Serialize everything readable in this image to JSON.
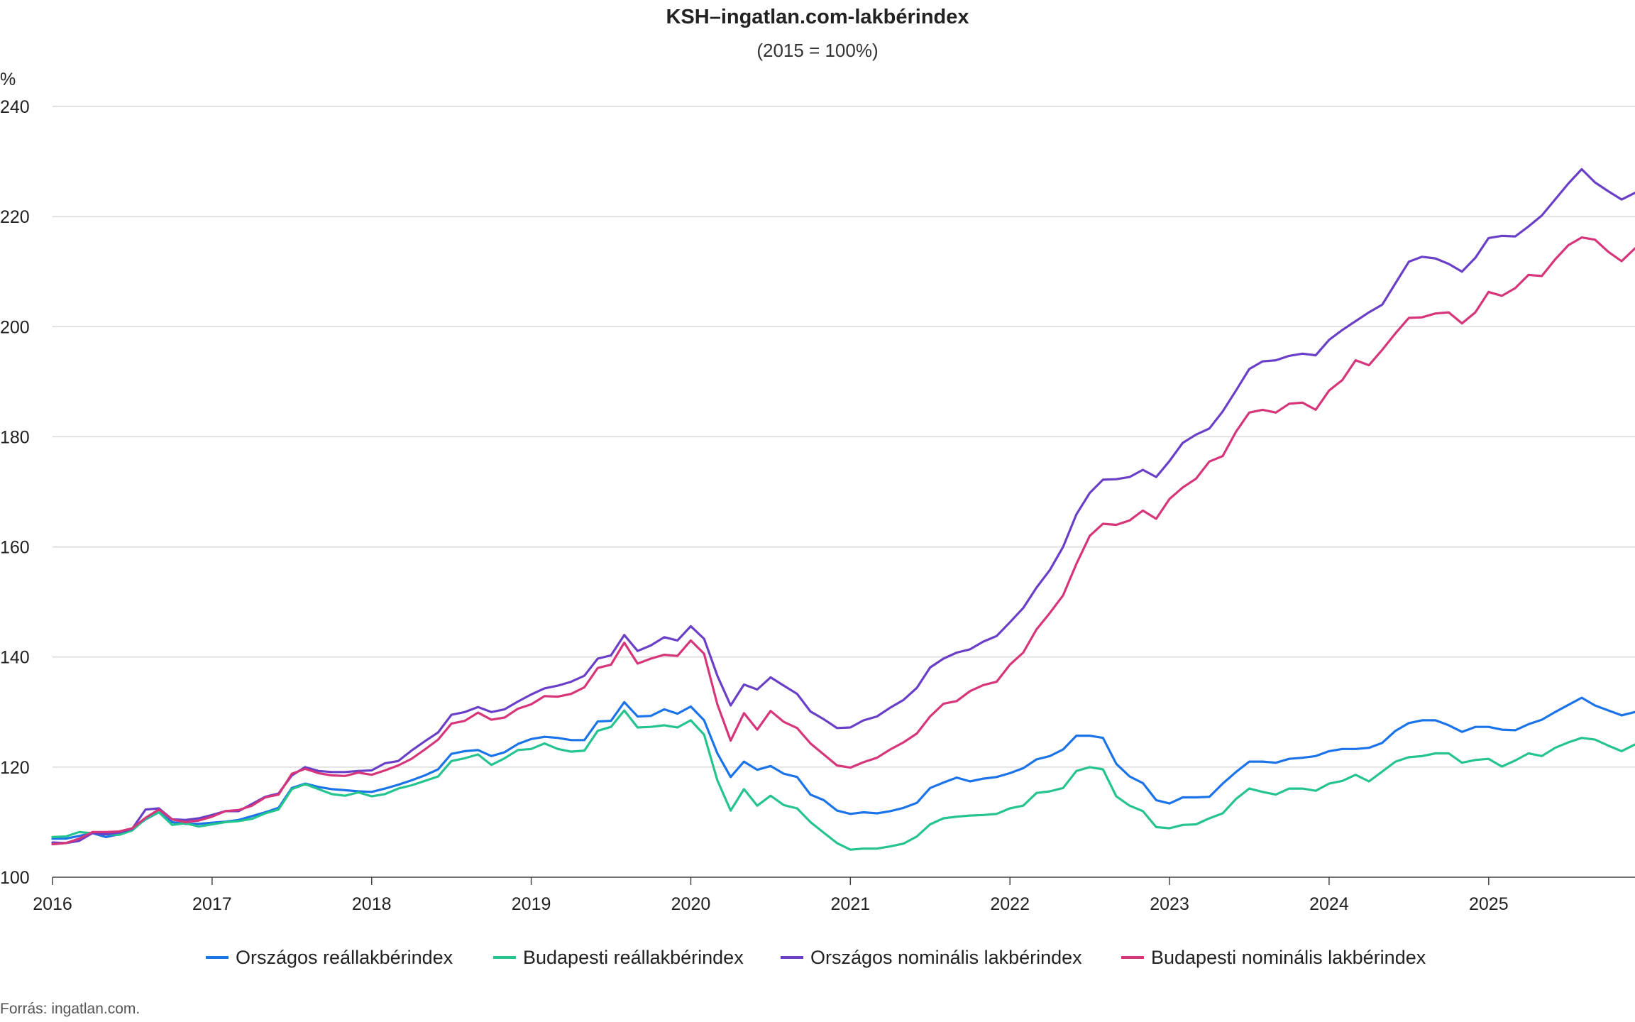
{
  "chart_data": {
    "type": "line",
    "title": "KSH–ingatlan.com-lakbérindex",
    "subtitle": "(2015 = 100%)",
    "ylabel": "%",
    "xlabel": "",
    "ylim": [
      100,
      240
    ],
    "yticks": [
      100,
      120,
      140,
      160,
      180,
      200,
      220,
      240
    ],
    "xlim": [
      2016.0,
      2025.917
    ],
    "xticks": [
      "2016",
      "2017",
      "2018",
      "2019",
      "2020",
      "2021",
      "2022",
      "2023",
      "2024",
      "2025"
    ],
    "grid": true,
    "legend_position": "bottom",
    "source": "Forrás: ingatlan.com.",
    "x_start": 2016.0,
    "x_step": 0.08333,
    "series": [
      {
        "name": "Országos reállakbérindex",
        "color": "#1a73e8",
        "values": [
          107.0,
          107.0,
          107.5,
          108.0,
          107.3,
          107.8,
          108.7,
          110.5,
          111.8,
          110.0,
          109.7,
          109.7,
          109.9,
          110.1,
          110.4,
          111.1,
          111.8,
          112.6,
          116.2,
          117.0,
          116.4,
          116.0,
          115.8,
          115.6,
          115.5,
          116.1,
          116.8,
          117.6,
          118.5,
          119.6,
          122.4,
          122.9,
          123.1,
          122.0,
          122.7,
          124.2,
          125.1,
          125.5,
          125.3,
          124.9,
          124.9,
          128.3,
          128.4,
          131.8,
          129.2,
          129.3,
          130.5,
          129.7,
          131.0,
          128.5,
          122.5,
          118.2,
          121.0,
          119.5,
          120.2,
          118.8,
          118.2,
          115.0,
          114.0,
          112.1,
          111.5,
          111.8,
          111.6,
          112.0,
          112.6,
          113.5,
          116.2,
          117.2,
          118.1,
          117.4,
          117.9,
          118.2,
          118.9,
          119.8,
          121.4,
          122.0,
          123.2,
          125.7,
          125.7,
          125.3,
          120.6,
          118.3,
          117.1,
          114.0,
          113.4,
          114.5,
          114.5,
          114.6,
          117.0,
          119.1,
          121.0,
          121.0,
          120.8,
          121.5,
          121.7,
          122.0,
          122.9,
          123.3,
          123.3,
          123.5,
          124.4,
          126.6,
          128.0,
          128.5,
          128.5,
          127.6,
          126.4,
          127.3,
          127.3,
          126.8,
          126.7,
          127.8,
          128.6,
          130.0,
          131.3,
          132.6,
          131.2,
          130.3,
          129.4,
          130.0
        ]
      },
      {
        "name": "Budapesti reállakbérindex",
        "color": "#25c48e",
        "values": [
          107.3,
          107.4,
          108.2,
          108.0,
          107.8,
          107.7,
          108.5,
          110.6,
          111.8,
          109.5,
          109.8,
          109.2,
          109.6,
          110.0,
          110.2,
          110.6,
          111.6,
          112.3,
          116.0,
          116.9,
          116.0,
          115.1,
          114.8,
          115.4,
          114.7,
          115.1,
          116.1,
          116.7,
          117.5,
          118.3,
          121.1,
          121.6,
          122.3,
          120.4,
          121.6,
          123.1,
          123.3,
          124.3,
          123.3,
          122.8,
          123.0,
          126.6,
          127.3,
          130.3,
          127.2,
          127.3,
          127.6,
          127.2,
          128.5,
          125.9,
          117.6,
          112.1,
          116.0,
          113.0,
          114.8,
          113.1,
          112.5,
          110.0,
          108.1,
          106.2,
          105.0,
          105.2,
          105.2,
          105.6,
          106.1,
          107.4,
          109.6,
          110.7,
          111.0,
          111.2,
          111.3,
          111.5,
          112.5,
          113.0,
          115.3,
          115.6,
          116.2,
          119.3,
          120.0,
          119.6,
          114.7,
          113.0,
          112.0,
          109.1,
          108.9,
          109.5,
          109.6,
          110.7,
          111.6,
          114.2,
          116.1,
          115.5,
          115.0,
          116.1,
          116.1,
          115.7,
          117.0,
          117.5,
          118.6,
          117.4,
          119.2,
          121.0,
          121.8,
          122.0,
          122.5,
          122.5,
          120.8,
          121.3,
          121.5,
          120.1,
          121.2,
          122.5,
          122.0,
          123.5,
          124.5,
          125.3,
          125.0,
          123.9,
          122.9,
          124.1
        ]
      },
      {
        "name": "Országos nominális lakbérindex",
        "color": "#6a3fc7",
        "values": [
          106.3,
          106.2,
          106.6,
          108.0,
          107.8,
          108.1,
          108.8,
          112.3,
          112.5,
          110.5,
          110.4,
          110.7,
          111.3,
          112.0,
          112.0,
          113.3,
          114.6,
          115.2,
          118.5,
          120.0,
          119.3,
          119.1,
          119.1,
          119.3,
          119.4,
          120.7,
          121.1,
          123.0,
          124.7,
          126.3,
          129.5,
          130.0,
          130.9,
          130.0,
          130.5,
          131.9,
          133.2,
          134.3,
          134.8,
          135.5,
          136.6,
          139.7,
          140.3,
          144.0,
          141.1,
          142.1,
          143.6,
          143.0,
          145.6,
          143.3,
          136.6,
          131.2,
          135.0,
          134.1,
          136.3,
          134.8,
          133.3,
          130.1,
          128.7,
          127.1,
          127.2,
          128.5,
          129.2,
          130.8,
          132.2,
          134.4,
          138.1,
          139.7,
          140.8,
          141.4,
          142.8,
          143.8,
          146.3,
          148.9,
          152.6,
          155.8,
          160.0,
          165.9,
          169.8,
          172.2,
          172.3,
          172.7,
          174.0,
          172.7,
          175.6,
          178.9,
          180.4,
          181.5,
          184.6,
          188.4,
          192.3,
          193.7,
          193.9,
          194.7,
          195.1,
          194.8,
          197.6,
          199.4,
          201.0,
          202.6,
          204.0,
          207.9,
          211.8,
          212.7,
          212.4,
          211.4,
          210.0,
          212.5,
          216.1,
          216.5,
          216.4,
          218.2,
          220.2,
          223.1,
          226.0,
          228.6,
          226.2,
          224.6,
          223.1,
          224.3
        ]
      },
      {
        "name": "Budapesti nominális lakbérindex",
        "color": "#d6357a",
        "values": [
          106.0,
          106.2,
          107.0,
          108.2,
          108.2,
          108.3,
          108.9,
          110.8,
          112.3,
          110.5,
          110.0,
          110.3,
          111.0,
          112.0,
          112.2,
          113.0,
          114.5,
          115.0,
          118.8,
          119.7,
          118.9,
          118.5,
          118.4,
          119.0,
          118.6,
          119.4,
          120.3,
          121.5,
          123.2,
          125.0,
          127.9,
          128.4,
          129.9,
          128.6,
          129.0,
          130.6,
          131.4,
          132.9,
          132.8,
          133.3,
          134.5,
          138.0,
          138.6,
          142.6,
          138.8,
          139.7,
          140.4,
          140.2,
          143.0,
          140.6,
          131.4,
          124.8,
          129.8,
          126.8,
          130.2,
          128.2,
          127.1,
          124.3,
          122.3,
          120.3,
          119.9,
          120.9,
          121.7,
          123.2,
          124.5,
          126.1,
          129.2,
          131.5,
          132.0,
          133.8,
          134.9,
          135.5,
          138.6,
          140.8,
          145.0,
          148.0,
          151.2,
          156.9,
          162.0,
          164.2,
          164.0,
          164.8,
          166.6,
          165.1,
          168.7,
          170.8,
          172.4,
          175.5,
          176.5,
          180.9,
          184.4,
          184.9,
          184.4,
          186.0,
          186.2,
          184.9,
          188.4,
          190.3,
          193.9,
          193.0,
          195.8,
          198.8,
          201.6,
          201.7,
          202.4,
          202.6,
          200.6,
          202.6,
          206.3,
          205.6,
          207.0,
          209.4,
          209.2,
          212.2,
          214.8,
          216.2,
          215.8,
          213.6,
          211.9,
          214.2
        ]
      }
    ]
  }
}
